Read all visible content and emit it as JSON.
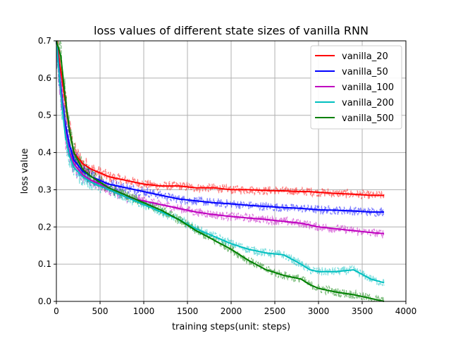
{
  "chart_data": {
    "type": "line",
    "title": "loss values of different state sizes of vanilla RNN",
    "xlabel": "training steps(unit: steps)",
    "ylabel": "loss value",
    "xlim": [
      0,
      4000
    ],
    "ylim": [
      0,
      0.7
    ],
    "xticks": [
      0,
      500,
      1000,
      1500,
      2000,
      2500,
      3000,
      3500,
      4000
    ],
    "yticks": [
      0.0,
      0.1,
      0.2,
      0.3,
      0.4,
      0.5,
      0.6,
      0.7
    ],
    "xtick_labels": [
      "0",
      "500",
      "1000",
      "1500",
      "2000",
      "2500",
      "3000",
      "3500",
      "4000"
    ],
    "ytick_labels": [
      "0.0",
      "0.1",
      "0.2",
      "0.3",
      "0.4",
      "0.5",
      "0.6",
      "0.7"
    ],
    "grid": true,
    "legend_position": "top-right",
    "x": [
      0,
      50,
      100,
      150,
      200,
      300,
      400,
      500,
      600,
      700,
      800,
      900,
      1000,
      1200,
      1400,
      1600,
      1800,
      2000,
      2200,
      2400,
      2600,
      2800,
      2900,
      3000,
      3200,
      3400,
      3600,
      3750
    ],
    "series": [
      {
        "name": "vanilla_20",
        "color": "#ff0000",
        "values": [
          0.7,
          0.62,
          0.54,
          0.46,
          0.4,
          0.37,
          0.355,
          0.345,
          0.335,
          0.33,
          0.325,
          0.32,
          0.315,
          0.31,
          0.31,
          0.305,
          0.305,
          0.3,
          0.3,
          0.298,
          0.297,
          0.295,
          0.295,
          0.293,
          0.29,
          0.288,
          0.285,
          0.285
        ]
      },
      {
        "name": "vanilla_50",
        "color": "#0000ff",
        "values": [
          0.7,
          0.58,
          0.48,
          0.42,
          0.38,
          0.35,
          0.335,
          0.325,
          0.315,
          0.31,
          0.305,
          0.3,
          0.295,
          0.285,
          0.275,
          0.27,
          0.265,
          0.262,
          0.258,
          0.255,
          0.252,
          0.25,
          0.248,
          0.246,
          0.245,
          0.243,
          0.24,
          0.24
        ]
      },
      {
        "name": "vanilla_100",
        "color": "#bf00bf",
        "values": [
          0.7,
          0.57,
          0.46,
          0.4,
          0.37,
          0.34,
          0.325,
          0.315,
          0.3,
          0.29,
          0.28,
          0.275,
          0.27,
          0.26,
          0.25,
          0.24,
          0.233,
          0.228,
          0.224,
          0.22,
          0.215,
          0.21,
          0.205,
          0.2,
          0.195,
          0.19,
          0.185,
          0.182
        ]
      },
      {
        "name": "vanilla_200",
        "color": "#00bfbf",
        "values": [
          0.7,
          0.56,
          0.45,
          0.39,
          0.36,
          0.335,
          0.32,
          0.31,
          0.3,
          0.29,
          0.28,
          0.27,
          0.26,
          0.24,
          0.22,
          0.195,
          0.175,
          0.155,
          0.14,
          0.13,
          0.125,
          0.1,
          0.085,
          0.08,
          0.08,
          0.085,
          0.06,
          0.05
        ]
      },
      {
        "name": "vanilla_500",
        "color": "#008000",
        "values": [
          0.72,
          0.66,
          0.55,
          0.46,
          0.4,
          0.355,
          0.335,
          0.32,
          0.305,
          0.295,
          0.285,
          0.275,
          0.265,
          0.245,
          0.22,
          0.19,
          0.165,
          0.14,
          0.11,
          0.085,
          0.07,
          0.06,
          0.045,
          0.035,
          0.025,
          0.018,
          0.008,
          0.0
        ]
      }
    ]
  }
}
